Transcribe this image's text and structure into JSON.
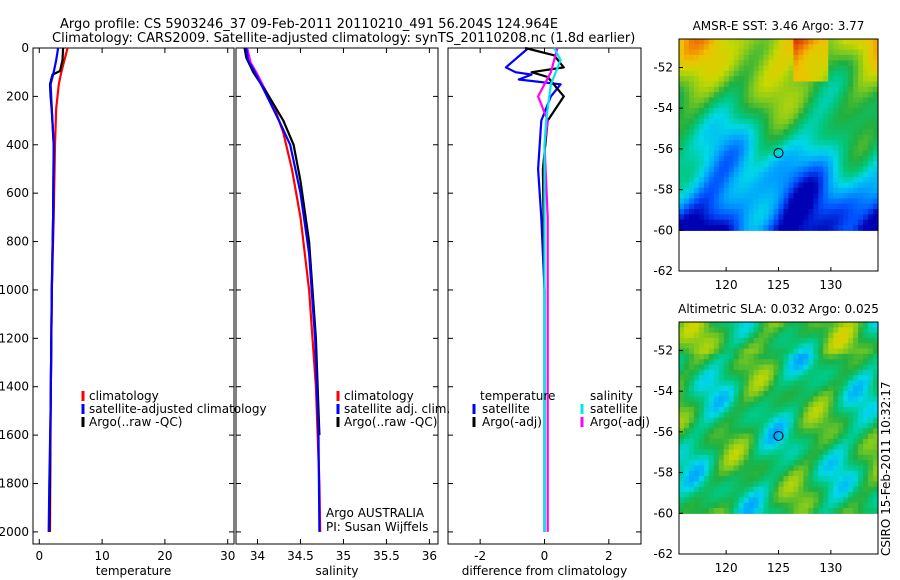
{
  "header": {
    "line1": "Argo profile: CS 5903246_37 09-Feb-2011 20110210_491 56.204S 124.964E",
    "line2": "Climatology: CARS2009. Satellite-adjusted climatology: synTS_20110208.nc (1.8d earlier)"
  },
  "credit": "CSIRO 15-Feb-2011 10:32:17",
  "colors": {
    "red": "#ff0000",
    "blue": "#0000ff",
    "black": "#000000",
    "cyan": "#00e8e8",
    "magenta": "#ff00ff"
  },
  "chart_data": [
    {
      "id": "temperature",
      "type": "line",
      "xlabel": "temperature",
      "xlim": [
        -1,
        31
      ],
      "ylim": [
        2050,
        0
      ],
      "xticks": [
        0,
        10,
        20,
        30
      ],
      "xticklabels": [
        "0",
        "10",
        "20",
        "30"
      ],
      "yticks": [
        0,
        200,
        400,
        600,
        800,
        1000,
        1200,
        1400,
        1600,
        1800,
        2000
      ],
      "yticklabels": [
        "0",
        "200",
        "400",
        "600",
        "800",
        "1000",
        "1200",
        "1400",
        "1600",
        "1800",
        "2000"
      ],
      "series": [
        {
          "color": "red",
          "x": [
            4.5,
            4.3,
            3.9,
            3.5,
            3.1,
            2.7,
            2.5,
            2.3,
            2.0,
            1.8,
            1.7
          ],
          "y": [
            0,
            20,
            60,
            100,
            150,
            250,
            400,
            700,
            1000,
            1500,
            2000
          ]
        },
        {
          "color": "black",
          "x": [
            3.8,
            3.7,
            3.3,
            2.1,
            1.7,
            1.8,
            2.0,
            2.3,
            2.2,
            2.0,
            1.8,
            1.7,
            1.6
          ],
          "y": [
            0,
            50,
            95,
            110,
            150,
            200,
            260,
            400,
            700,
            1000,
            1500,
            1800,
            2000
          ]
        },
        {
          "color": "blue",
          "x": [
            3.0,
            2.7,
            2.3,
            1.8,
            2.0,
            2.3,
            2.2,
            2.0,
            1.8,
            1.6,
            1.5
          ],
          "y": [
            0,
            50,
            100,
            150,
            250,
            400,
            700,
            1000,
            1500,
            1800,
            2000
          ]
        }
      ],
      "legend": {
        "placement": "lower-right",
        "entries": [
          {
            "color": "red",
            "label": "climatology"
          },
          {
            "color": "blue",
            "label": "satellite-adjusted climatology"
          },
          {
            "color": "black",
            "label": "Argo(..raw -QC)"
          }
        ]
      }
    },
    {
      "id": "salinity",
      "type": "line",
      "xlabel": "salinity",
      "xlim": [
        33.75,
        36.1
      ],
      "ylim": [
        2050,
        0
      ],
      "xticks": [
        34,
        34.5,
        35,
        35.5,
        36
      ],
      "xticklabels": [
        "34",
        "34.5",
        "35",
        "35.5",
        "36"
      ],
      "yticks": [
        0,
        200,
        400,
        600,
        800,
        1000,
        1200,
        1400,
        1600,
        1800,
        2000
      ],
      "series": [
        {
          "color": "red",
          "x": [
            33.88,
            33.9,
            33.97,
            34.05,
            34.2,
            34.3,
            34.4,
            34.5,
            34.6,
            34.68,
            34.72,
            34.73
          ],
          "y": [
            0,
            60,
            100,
            150,
            250,
            350,
            500,
            700,
            1000,
            1400,
            1800,
            2000
          ]
        },
        {
          "color": "magenta",
          "x": [
            33.88,
            33.92,
            34.0,
            34.1,
            34.2
          ],
          "y": [
            0,
            60,
            110,
            180,
            260
          ]
        },
        {
          "color": "black",
          "x": [
            33.85,
            33.87,
            33.95,
            34.1,
            34.3,
            34.42,
            34.5,
            34.6,
            34.68,
            34.72
          ],
          "y": [
            0,
            40,
            100,
            180,
            300,
            400,
            550,
            800,
            1200,
            1600
          ]
        },
        {
          "color": "blue",
          "x": [
            33.87,
            33.89,
            33.97,
            34.07,
            34.25,
            34.38,
            34.5,
            34.6,
            34.67,
            34.71,
            34.72
          ],
          "y": [
            0,
            50,
            100,
            170,
            300,
            400,
            600,
            850,
            1200,
            1600,
            2000
          ]
        }
      ],
      "legend": {
        "placement": "lower-right",
        "entries": [
          {
            "color": "red",
            "label": "climatology"
          },
          {
            "color": "blue",
            "label": "satellite adj. clim."
          },
          {
            "color": "black",
            "label": "Argo(..raw -QC)"
          }
        ]
      },
      "annotation": [
        "Argo AUSTRALIA",
        "PI: Susan Wijffels"
      ]
    },
    {
      "id": "difference",
      "type": "line",
      "xlabel": "difference from climatology",
      "xlim": [
        -3,
        3
      ],
      "ylim": [
        2050,
        0
      ],
      "xticks": [
        -2,
        0,
        2
      ],
      "xticklabels": [
        "-2",
        "0",
        "2"
      ],
      "yticks": [
        0,
        200,
        400,
        600,
        800,
        1000,
        1200,
        1400,
        1600,
        1800,
        2000
      ],
      "series": [
        {
          "color": "blue",
          "x": [
            -0.5,
            -1.2,
            -0.9,
            -0.4,
            -0.8,
            0.5,
            0.2,
            -0.1,
            -0.2,
            -0.1,
            0.0,
            0.0,
            0.0
          ],
          "y": [
            0,
            80,
            100,
            110,
            130,
            150,
            200,
            300,
            500,
            700,
            1000,
            1500,
            2000
          ]
        },
        {
          "color": "black",
          "x": [
            -0.6,
            0.3,
            0.6,
            -0.4,
            0.1,
            0.6,
            0.1,
            -0.05,
            0.0,
            0.0,
            0.0
          ],
          "y": [
            0,
            30,
            80,
            100,
            120,
            200,
            300,
            500,
            1000,
            1500,
            2000
          ]
        },
        {
          "color": "magenta",
          "x": [
            0.4,
            0.2,
            -0.2,
            0.1,
            0.0,
            0.1,
            0.1,
            0.1,
            0.1
          ],
          "y": [
            0,
            100,
            200,
            300,
            400,
            700,
            1000,
            1500,
            2000
          ]
        },
        {
          "color": "cyan",
          "x": [
            0.3,
            0.5,
            0.2,
            0.05,
            0.0,
            0.0,
            0.0,
            0.0,
            0.0
          ],
          "y": [
            0,
            50,
            150,
            300,
            400,
            700,
            1000,
            1500,
            2000
          ]
        }
      ],
      "legend": {
        "placement": "lower-center",
        "groups": [
          {
            "title": "temperature",
            "entries": [
              {
                "color": "blue",
                "label": "satellite"
              },
              {
                "color": "black",
                "label": "Argo(-adj)"
              }
            ]
          },
          {
            "title": "salinity",
            "entries": [
              {
                "color": "cyan",
                "label": "satellite"
              },
              {
                "color": "magenta",
                "label": "Argo(-adj)"
              }
            ]
          }
        ]
      }
    },
    {
      "id": "sst-map",
      "type": "heatmap",
      "title": "AMSR-E SST: 3.46 Argo: 3.77",
      "xlim": [
        115.5,
        134.5
      ],
      "ylim": [
        -62,
        -50.6
      ],
      "xticks": [
        120,
        125,
        130
      ],
      "xticklabels": [
        "120",
        "125",
        "130"
      ],
      "yticks": [
        -52,
        -54,
        -56,
        -58,
        -60,
        -62
      ],
      "yticklabels": [
        "-52",
        "-54",
        "-56",
        "-58",
        "-60",
        "-62"
      ],
      "data_ylim": [
        -60,
        -50.6
      ],
      "marker": {
        "lon": 125,
        "lat": -56.2
      }
    },
    {
      "id": "sla-map",
      "type": "heatmap",
      "title": "Altimetric SLA: 0.032 Argo: 0.025",
      "xlim": [
        115.5,
        134.5
      ],
      "ylim": [
        -62,
        -50.6
      ],
      "xticks": [
        120,
        125,
        130
      ],
      "xticklabels": [
        "120",
        "125",
        "130"
      ],
      "yticks": [
        -52,
        -54,
        -56,
        -58,
        -60,
        -62
      ],
      "yticklabels": [
        "-52",
        "-54",
        "-56",
        "-58",
        "-60",
        "-62"
      ],
      "data_ylim": [
        -60,
        -50.6
      ],
      "marker": {
        "lon": 125,
        "lat": -56.2
      }
    }
  ]
}
